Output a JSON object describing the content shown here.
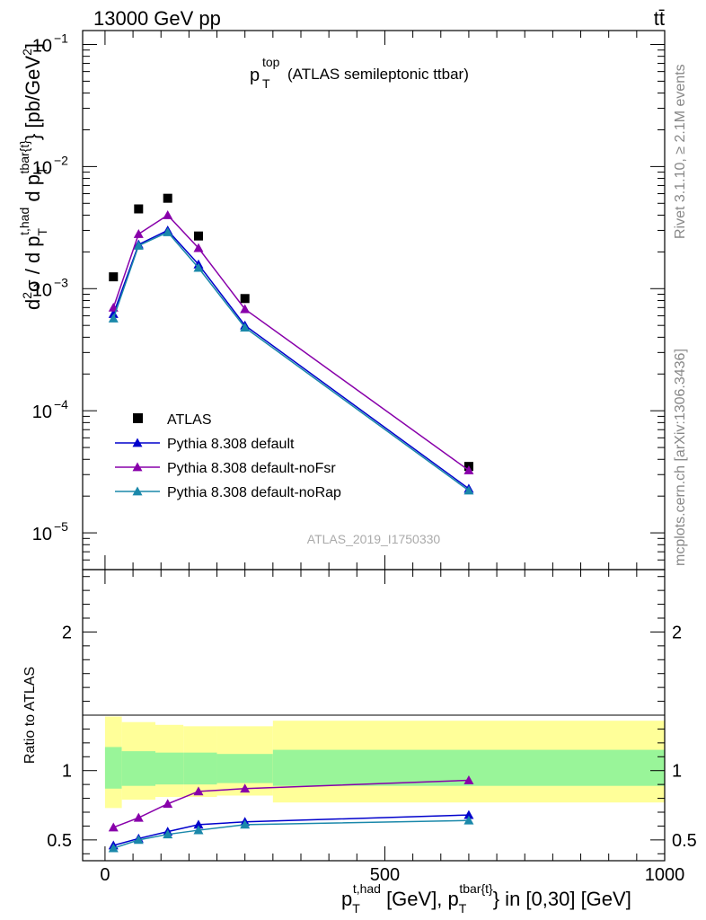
{
  "header": {
    "energy_label": "13000 GeV pp",
    "process_label": "tt̄"
  },
  "side_labels": {
    "rivet": "Rivet 3.1.10, ≥ 2.1M events",
    "mcplots": "mcplots.cern.ch [arXiv:1306.3436]"
  },
  "chart_data": [
    {
      "type": "scatter",
      "panel": "main",
      "title_main": "p",
      "title_sup": "top",
      "title_sub": "T",
      "title_rest": "(ATLAS semileptonic ttbar)",
      "watermark": "ATLAS_2019_I1750330",
      "ylabel": "d²σ / d p_T^{t,had} d p_T^{tbar{t}} [pb/GeV²]",
      "yscale": "log",
      "ylim": [
        5e-06,
        0.13
      ],
      "xlim": [
        -40,
        1000
      ],
      "y_ticks": [
        {
          "value": 0.1,
          "base": "10",
          "exp": "−1"
        },
        {
          "value": 0.01,
          "base": "10",
          "exp": "−2"
        },
        {
          "value": 0.001,
          "base": "10",
          "exp": "−3"
        },
        {
          "value": 0.0001,
          "base": "10",
          "exp": "−4"
        },
        {
          "value": 1e-05,
          "base": "10",
          "exp": "−5"
        }
      ],
      "legend_position": "middle-left",
      "series": [
        {
          "name": "ATLAS",
          "marker": "square",
          "color": "#000000",
          "x": [
            15,
            60,
            112,
            167,
            250,
            650
          ],
          "y": [
            0.00125,
            0.0045,
            0.0055,
            0.0027,
            0.00083,
            3.5e-05
          ]
        },
        {
          "name": "Pythia 8.308 default",
          "marker": "triangle",
          "color": "#0000cc",
          "x": [
            15,
            60,
            112,
            167,
            250,
            650
          ],
          "y": [
            0.00062,
            0.0023,
            0.003,
            0.00158,
            0.0005,
            2.3e-05
          ]
        },
        {
          "name": "Pythia 8.308 default-noFsr",
          "marker": "triangle",
          "color": "#8800aa",
          "x": [
            15,
            60,
            112,
            167,
            250,
            650
          ],
          "y": [
            0.0007,
            0.0028,
            0.004,
            0.00215,
            0.00068,
            3.25e-05
          ]
        },
        {
          "name": "Pythia 8.308 default-noRap",
          "marker": "triangle",
          "color": "#1a88aa",
          "x": [
            15,
            60,
            112,
            167,
            250,
            650
          ],
          "y": [
            0.00057,
            0.00225,
            0.0029,
            0.00148,
            0.00048,
            2.22e-05
          ]
        }
      ]
    },
    {
      "type": "line",
      "panel": "ratio",
      "ylabel": "Ratio to ATLAS",
      "xlabel": "p_T^{t,had} [GeV], p_T^{tbar{t}} in [0,30] [GeV]",
      "ylim": [
        0.35,
        2.45
      ],
      "xlim": [
        -40,
        1000
      ],
      "x_ticks": [
        0,
        500,
        1000
      ],
      "y_ticks": [
        0.5,
        1,
        2
      ],
      "bands": [
        {
          "x0": 0,
          "x1": 30,
          "yellow": [
            0.73,
            1.39
          ],
          "green": [
            0.87,
            1.17
          ]
        },
        {
          "x0": 30,
          "x1": 90,
          "yellow": [
            0.79,
            1.35
          ],
          "green": [
            0.89,
            1.14
          ]
        },
        {
          "x0": 90,
          "x1": 140,
          "yellow": [
            0.81,
            1.33
          ],
          "green": [
            0.9,
            1.13
          ]
        },
        {
          "x0": 140,
          "x1": 200,
          "yellow": [
            0.81,
            1.32
          ],
          "green": [
            0.9,
            1.13
          ]
        },
        {
          "x0": 200,
          "x1": 300,
          "yellow": [
            0.82,
            1.32
          ],
          "green": [
            0.91,
            1.12
          ]
        },
        {
          "x0": 300,
          "x1": 1000,
          "yellow": [
            0.77,
            1.36
          ],
          "green": [
            0.89,
            1.15
          ]
        }
      ],
      "series": [
        {
          "name": "Pythia 8.308 default",
          "color": "#0000cc",
          "x": [
            15,
            60,
            112,
            167,
            250,
            650
          ],
          "y": [
            0.46,
            0.51,
            0.56,
            0.61,
            0.63,
            0.68
          ]
        },
        {
          "name": "Pythia 8.308 default-noFsr",
          "color": "#8800aa",
          "x": [
            15,
            60,
            112,
            167,
            250,
            650
          ],
          "y": [
            0.59,
            0.66,
            0.76,
            0.85,
            0.87,
            0.93
          ]
        },
        {
          "name": "Pythia 8.308 default-noRap",
          "color": "#1a88aa",
          "x": [
            15,
            60,
            112,
            167,
            250,
            650
          ],
          "y": [
            0.44,
            0.5,
            0.54,
            0.57,
            0.61,
            0.64
          ]
        }
      ]
    }
  ]
}
